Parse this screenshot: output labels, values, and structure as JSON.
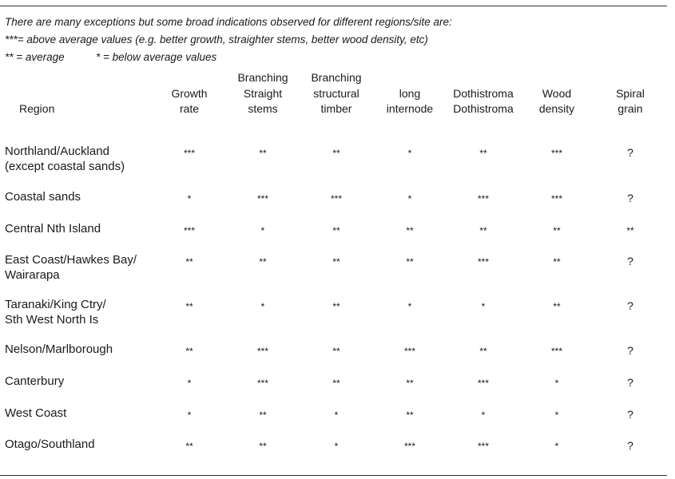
{
  "intro": {
    "line1": "There are many exceptions but some broad indications observed for different regions/site are:",
    "line2": "***= above average values (e.g. better growth, straighter stems, better wood density, etc)",
    "line3_a": "** = average",
    "line3_b": "* = below average values"
  },
  "columns": [
    {
      "line1": "",
      "line2": "",
      "line3": "Region"
    },
    {
      "line1": "",
      "line2": "Growth",
      "line3": "rate"
    },
    {
      "line1": "Branching",
      "line2": "Straight",
      "line3": "stems"
    },
    {
      "line1": "Branching",
      "line2": "structural",
      "line3": "timber"
    },
    {
      "line1": "",
      "line2": "long",
      "line3": "internode"
    },
    {
      "line1": "",
      "line2": "Dothistroma",
      "line3": "Dothistroma"
    },
    {
      "line1": "",
      "line2": "Wood",
      "line3": "density"
    },
    {
      "line1": "",
      "line2": "Spiral",
      "line3": "grain"
    }
  ],
  "rows": [
    {
      "region_l1": "Northland/Auckland",
      "region_l2": "(except coastal sands)",
      "growth": "***",
      "straight": "**",
      "structural": "**",
      "internode": "*",
      "dothistroma": "**",
      "density": "***",
      "spiral": "?"
    },
    {
      "region_l1": "Coastal sands",
      "region_l2": "",
      "growth": "*",
      "straight": "***",
      "structural": "***",
      "internode": "*",
      "dothistroma": "***",
      "density": "***",
      "spiral": "?"
    },
    {
      "region_l1": "Central Nth Island",
      "region_l2": "",
      "growth": "***",
      "straight": "*",
      "structural": "**",
      "internode": "**",
      "dothistroma": "**",
      "density": "**",
      "spiral": "**"
    },
    {
      "region_l1": "East Coast/Hawkes Bay/",
      "region_l2": "Wairarapa",
      "growth": "**",
      "straight": "**",
      "structural": "**",
      "internode": "**",
      "dothistroma": "***",
      "density": "**",
      "spiral": "?"
    },
    {
      "region_l1": "Taranaki/King Ctry/",
      "region_l2": "Sth West North Is",
      "growth": "**",
      "straight": "*",
      "structural": "**",
      "internode": "*",
      "dothistroma": "*",
      "density": "**",
      "spiral": "?"
    },
    {
      "region_l1": "Nelson/Marlborough",
      "region_l2": "",
      "growth": "**",
      "straight": "***",
      "structural": "**",
      "internode": "***",
      "dothistroma": "**",
      "density": "***",
      "spiral": "?"
    },
    {
      "region_l1": "Canterbury",
      "region_l2": "",
      "growth": "*",
      "straight": "***",
      "structural": "**",
      "internode": "**",
      "dothistroma": "***",
      "density": "*",
      "spiral": "?"
    },
    {
      "region_l1": "West Coast",
      "region_l2": "",
      "growth": "*",
      "straight": "**",
      "structural": "*",
      "internode": "**",
      "dothistroma": "*",
      "density": "*",
      "spiral": "?"
    },
    {
      "region_l1": "Otago/Southland",
      "region_l2": "",
      "growth": "**",
      "straight": "**",
      "structural": "*",
      "internode": "***",
      "dothistroma": "***",
      "density": "*",
      "spiral": "?"
    }
  ]
}
